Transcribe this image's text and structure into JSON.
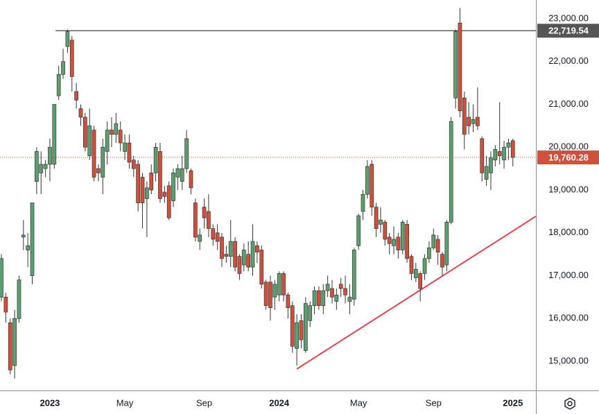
{
  "chart_data": {
    "type": "candlestick",
    "categories": [
      null,
      null,
      null,
      null,
      null,
      null,
      null,
      null,
      null,
      null,
      null,
      "2023",
      null,
      null,
      null,
      null,
      null,
      null,
      null,
      null,
      null,
      null,
      null,
      null,
      null,
      null,
      null,
      null,
      "May",
      null,
      null,
      null,
      null,
      null,
      null,
      null,
      null,
      null,
      null,
      null,
      null,
      null,
      null,
      null,
      null,
      null,
      "Sep",
      null,
      null,
      null,
      null,
      null,
      null,
      null,
      null,
      null,
      null,
      null,
      null,
      null,
      null,
      null,
      null,
      "2024",
      null,
      null,
      null,
      null,
      null,
      null,
      null,
      null,
      null,
      null,
      null,
      null,
      null,
      null,
      null,
      null,
      null,
      "May",
      null,
      null,
      null,
      null,
      null,
      null,
      null,
      null,
      null,
      null,
      null,
      null,
      null,
      null,
      null,
      null,
      "Sep",
      null,
      null,
      null,
      null,
      null,
      null,
      null,
      null,
      null,
      null,
      null,
      null,
      null,
      null,
      null,
      null,
      null,
      "2025"
    ],
    "open": [
      16500,
      16500,
      15900,
      14900,
      16000,
      17900,
      17600,
      17000,
      19200,
      19400,
      19500,
      19600,
      19600,
      21200,
      21700,
      22350,
      22500,
      21300,
      20900,
      20700,
      19800,
      20400,
      19500,
      19300,
      19900,
      20400,
      20300,
      20400,
      19900,
      20100,
      19700,
      19600,
      19300,
      18800,
      19400,
      19400,
      19900,
      18950,
      19100,
      18750,
      19300,
      19200,
      19500,
      19450,
      18700,
      17800,
      18600,
      18500,
      18100,
      18000,
      17900,
      17500,
      17450,
      17800,
      17450,
      17250,
      17500,
      17200,
      17700,
      17600,
      16850,
      16850,
      16500,
      16550,
      17050,
      16550,
      16300,
      15300,
      15950,
      15250,
      15950,
      16300,
      16650,
      16300,
      16650,
      16700,
      16400,
      16800,
      16700,
      16400,
      16450,
      17700,
      18500,
      18900,
      19600,
      18600,
      18200,
      18250,
      17900,
      17700,
      17900,
      17600,
      18200,
      17450,
      16950,
      17050,
      17050,
      17400,
      17650,
      17850,
      17500,
      17250,
      18250,
      21150,
      22900,
      21150,
      20700,
      20550,
      20700,
      20200,
      19250,
      19400,
      19700,
      19900,
      19700,
      20000,
      20150
    ],
    "high": [
      17500,
      16600,
      16000,
      16200,
      17000,
      18300,
      18000,
      18700,
      20000,
      19900,
      19700,
      20200,
      21000,
      21900,
      22300,
      22750,
      22600,
      21500,
      21000,
      20800,
      20900,
      20500,
      19600,
      20200,
      20600,
      20700,
      20800,
      20600,
      20300,
      20300,
      19800,
      19700,
      19400,
      19200,
      19600,
      20100,
      20100,
      19100,
      19200,
      19500,
      19600,
      19800,
      20400,
      19500,
      18800,
      18100,
      18800,
      18900,
      18200,
      18200,
      18000,
      17700,
      18300,
      17900,
      17500,
      17750,
      17800,
      18200,
      17800,
      17700,
      16900,
      17000,
      16900,
      17100,
      17100,
      16600,
      16400,
      16100,
      16100,
      16500,
      16400,
      16750,
      16750,
      16800,
      17000,
      16900,
      16700,
      16950,
      17000,
      16800,
      17650,
      18450,
      19000,
      19700,
      19700,
      18700,
      18600,
      18300,
      18000,
      18150,
      18000,
      18300,
      18300,
      17500,
      17300,
      17100,
      17500,
      17800,
      18100,
      17950,
      17550,
      18300,
      20700,
      22750,
      23250,
      21300,
      21050,
      21000,
      21400,
      20250,
      19800,
      19900,
      20050,
      21050,
      20150,
      20200,
      20200
    ],
    "low": [
      16400,
      15900,
      14700,
      14600,
      15900,
      17600,
      17200,
      16800,
      18900,
      18900,
      19300,
      19200,
      19500,
      21100,
      21600,
      22200,
      21300,
      20900,
      20500,
      19900,
      19700,
      19200,
      19200,
      18900,
      19600,
      20000,
      20100,
      19900,
      19700,
      19500,
      19300,
      18500,
      18100,
      17900,
      18900,
      19200,
      18700,
      18700,
      18300,
      18600,
      19000,
      19000,
      19400,
      18900,
      17800,
      17600,
      18100,
      17900,
      17700,
      17600,
      17200,
      17300,
      17200,
      17100,
      16900,
      17100,
      17100,
      17000,
      17300,
      16700,
      16200,
      15950,
      16200,
      16400,
      16400,
      16000,
      15200,
      14900,
      15300,
      15200,
      15800,
      16100,
      16200,
      16100,
      16500,
      16350,
      16200,
      16500,
      16350,
      16100,
      16300,
      17600,
      18300,
      18800,
      18400,
      17900,
      18000,
      17700,
      17500,
      17500,
      17400,
      17500,
      17300,
      16900,
      16850,
      16400,
      16900,
      17300,
      17600,
      17250,
      17000,
      17100,
      18200,
      20900,
      20700,
      19950,
      20300,
      20350,
      20400,
      19200,
      19100,
      19000,
      19550,
      19600,
      19500,
      19700,
      19550
    ],
    "close": [
      17400,
      16150,
      14800,
      16000,
      16900,
      17950,
      17700,
      18700,
      19900,
      19600,
      19600,
      20000,
      21000,
      21700,
      22000,
      22700,
      21650,
      21100,
      20700,
      20000,
      20500,
      19300,
      19400,
      20000,
      20400,
      20300,
      20550,
      20100,
      20100,
      19650,
      19500,
      18700,
      18700,
      19050,
      19000,
      20000,
      18800,
      18850,
      18350,
      19400,
      19500,
      19500,
      20200,
      19050,
      17900,
      17950,
      18350,
      18100,
      17850,
      17800,
      17400,
      17450,
      17800,
      17200,
      17050,
      17600,
      17200,
      17800,
      17550,
      16800,
      16300,
      16250,
      16800,
      17050,
      16550,
      16250,
      15350,
      15900,
      15500,
      16350,
      16300,
      16650,
      16300,
      16650,
      16800,
      16500,
      16550,
      16700,
      16550,
      16500,
      17600,
      18400,
      18900,
      19550,
      18600,
      18100,
      18300,
      17850,
      17750,
      17850,
      17600,
      18250,
      17400,
      17050,
      17150,
      16700,
      17400,
      17650,
      17950,
      17550,
      17200,
      18250,
      20600,
      22700,
      20850,
      20300,
      20500,
      20650,
      20500,
      19400,
      19550,
      19750,
      19950,
      19800,
      20000,
      20100,
      19760.28
    ],
    "up_color": "#5e9f6e",
    "down_color": "#d0503c",
    "wick_color": "#333333",
    "ylim": [
      14320,
      23437
    ],
    "yticks": [
      {
        "value": 15000,
        "label": "15,000.00"
      },
      {
        "value": 16000,
        "label": "16,000.00"
      },
      {
        "value": 17000,
        "label": "17,000.00"
      },
      {
        "value": 18000,
        "label": "18,000.00"
      },
      {
        "value": 19000,
        "label": "19,000.00"
      },
      {
        "value": 20000,
        "label": "20,000.00"
      },
      {
        "value": 21000,
        "label": "21,000.00"
      },
      {
        "value": 22000,
        "label": "22,000.00"
      },
      {
        "value": 23000,
        "label": "23,000.00"
      }
    ],
    "grid": false,
    "resistance": {
      "value": 22719.54,
      "label": "22,719.54",
      "color": "#555555"
    },
    "last_price": {
      "value": 19760.28,
      "label": "19,760.28",
      "color": "#d0503c"
    },
    "trendline": {
      "x": [
        67,
        121.2
      ],
      "y": [
        14820,
        18385
      ],
      "color": "#e0434f"
    }
  }
}
